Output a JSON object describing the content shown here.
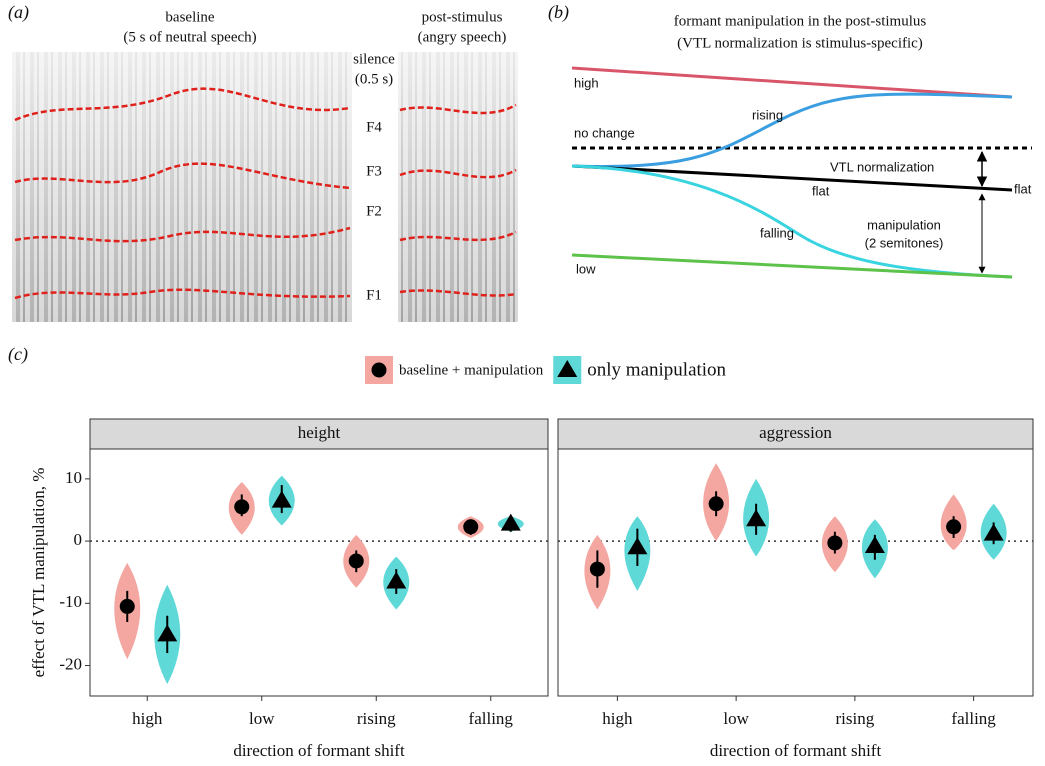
{
  "panel_a": {
    "label": "(a)",
    "baseline": "baseline",
    "baseline_note": "(5 s of neutral speech)",
    "post": "post-stimulus",
    "post_note": "(angry speech)",
    "silence": "silence",
    "silence_note": "(0.5 s)",
    "formants": [
      "F4",
      "F3",
      "F2",
      "F1"
    ]
  },
  "panel_b": {
    "label": "(b)",
    "title": "formant manipulation in the post-stimulus",
    "subtitle": "(VTL normalization is stimulus-specific)",
    "high": "high",
    "rising": "rising",
    "no_change": "no change",
    "vtl": "VTL normalization",
    "flat": "flat",
    "flat_end": "flat",
    "falling": "falling",
    "manipulation": "manipulation",
    "manipulation_note": "(2 semitones)",
    "low": "low"
  },
  "panel_c_label": "(c)",
  "chart_data": [
    {
      "type": "pointrange",
      "title": "height",
      "ylabel": "effect of VTL manipulation, %",
      "xlabel": "direction of formant shift",
      "categories": [
        "high",
        "low",
        "rising",
        "falling"
      ],
      "ylim": [
        -24.9,
        14.8
      ],
      "yticks": [
        -20,
        -10,
        0,
        10
      ],
      "reference_line": 0,
      "series": [
        {
          "name": "baseline + manipulation",
          "color": "#f4a7a1",
          "marker": "circle",
          "values": [
            -10.5,
            5.5,
            -3.2,
            2.3
          ],
          "lower": [
            -13,
            4,
            -5,
            1
          ],
          "upper": [
            -8,
            7.5,
            -1.5,
            3.5
          ],
          "violin_min": [
            -19,
            1,
            -7.5,
            0.5
          ],
          "violin_max": [
            -3.5,
            9.5,
            1,
            4
          ]
        },
        {
          "name": "only manipulation",
          "color": "#5fd8d8",
          "marker": "triangle",
          "values": [
            -15,
            6.5,
            -6.5,
            2.8
          ],
          "lower": [
            -18,
            4.5,
            -8.5,
            1.5
          ],
          "upper": [
            -12,
            9,
            -4.5,
            4
          ],
          "violin_min": [
            -23,
            2.5,
            -11,
            1.5
          ],
          "violin_max": [
            -7,
            10.5,
            -2.5,
            4
          ]
        }
      ]
    },
    {
      "type": "pointrange",
      "title": "aggression",
      "xlabel": "direction of formant shift",
      "categories": [
        "high",
        "low",
        "rising",
        "falling"
      ],
      "ylim": [
        -24.9,
        14.8
      ],
      "reference_line": 0,
      "series": [
        {
          "color": "#f4a7a1",
          "marker": "circle",
          "values": [
            -4.5,
            6,
            -0.3,
            2.3
          ],
          "lower": [
            -7.5,
            4,
            -2,
            0.5
          ],
          "upper": [
            -1.5,
            8,
            1.5,
            4
          ],
          "violin_min": [
            -11,
            0,
            -5,
            -1.5
          ],
          "violin_max": [
            1,
            12.5,
            4,
            7.5
          ]
        },
        {
          "color": "#5fd8d8",
          "marker": "triangle",
          "values": [
            -1,
            3.5,
            -0.8,
            1.2
          ],
          "lower": [
            -4,
            1,
            -3,
            -0.5
          ],
          "upper": [
            2,
            6,
            1,
            3
          ],
          "violin_min": [
            -8,
            -2.5,
            -6,
            -3
          ],
          "violin_max": [
            4,
            10,
            3.5,
            6
          ]
        }
      ]
    }
  ]
}
